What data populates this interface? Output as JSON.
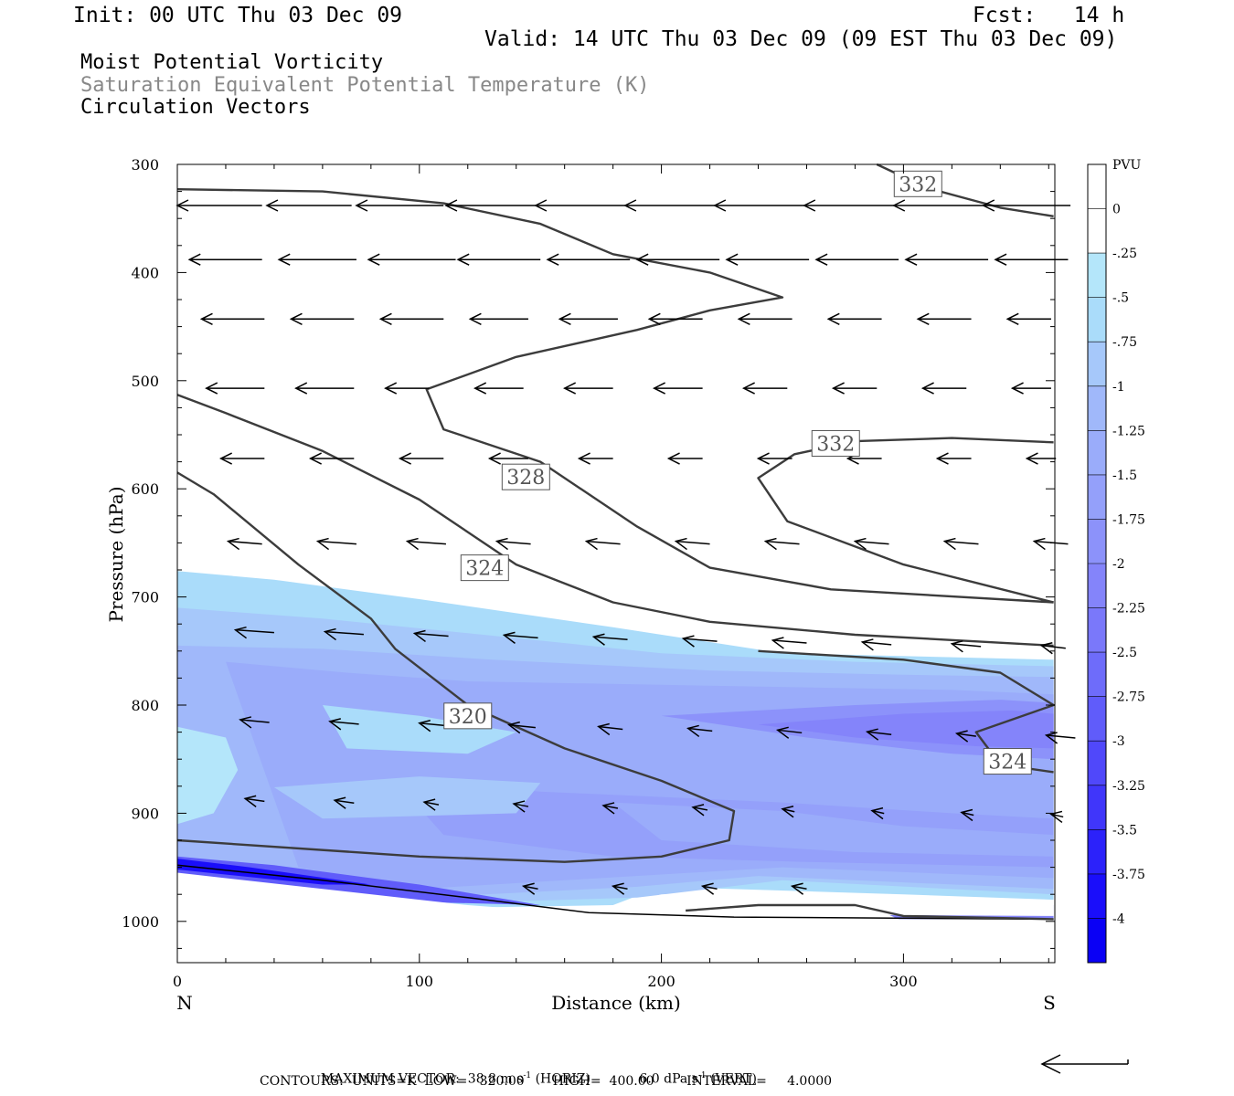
{
  "header": {
    "init": "Init: 00 UTC Thu 03 Dec 09",
    "fcst": "Fcst:   14 h",
    "valid": "Valid: 14 UTC Thu 03 Dec 09 (09 EST Thu 03 Dec 09)"
  },
  "titles": {
    "line1": "Moist Potential Vorticity",
    "line2": "Saturation Equivalent Potential Temperature (K)",
    "line3": "Circulation Vectors"
  },
  "footer": {
    "max_vector_label": "MAXIMUM VECTOR:",
    "horiz": "38.8 m s",
    "horiz_sup": "-1",
    "horiz_tag": "(HORIZ)",
    "vert": "6.0 dPa s",
    "vert_sup": "-1",
    "vert_tag": "(VERT)",
    "contours": "CONTOURS:  UNITS=K  LOW=   320.00       HIGH=  400.00        INTERVAL=     4.0000"
  },
  "chart_data": {
    "type": "heatmap",
    "xlabel": "Distance (km)",
    "ylabel": "Pressure (hPa)",
    "xlim": [
      0,
      362
    ],
    "ylim": [
      1040,
      300
    ],
    "x_ticks": [
      0,
      100,
      200,
      300
    ],
    "y_ticks": [
      300,
      400,
      500,
      600,
      700,
      800,
      900,
      1000
    ],
    "x_end_labels": {
      "left": "N",
      "right": "S"
    },
    "colorbar": {
      "unit": "PVU",
      "levels": [
        "0",
        "-.25",
        "-.5",
        "-.75",
        "-1",
        "-1.25",
        "-1.5",
        "-1.75",
        "-2",
        "-2.25",
        "-2.5",
        "-2.75",
        "-3",
        "-3.25",
        "-3.5",
        "-3.75",
        "-4"
      ],
      "colors": [
        "#ffffff",
        "#ffffff",
        "#b4e6fa",
        "#aadcfa",
        "#a6c8fa",
        "#a0b8fa",
        "#9aacfa",
        "#94a0fa",
        "#8c92fa",
        "#8484fa",
        "#7a78fa",
        "#6e6cfa",
        "#605cfa",
        "#5048fa",
        "#4036fa",
        "#2c22fa",
        "#1a0efa",
        "#0a00f5"
      ]
    },
    "contour_labels": [
      {
        "value": "332",
        "x": 306,
        "p": 318
      },
      {
        "value": "332",
        "x": 272,
        "p": 558
      },
      {
        "value": "328",
        "x": 144,
        "p": 589
      },
      {
        "value": "324",
        "x": 127,
        "p": 673
      },
      {
        "value": "324",
        "x": 343,
        "p": 852
      },
      {
        "value": "320",
        "x": 120,
        "p": 810
      }
    ]
  }
}
